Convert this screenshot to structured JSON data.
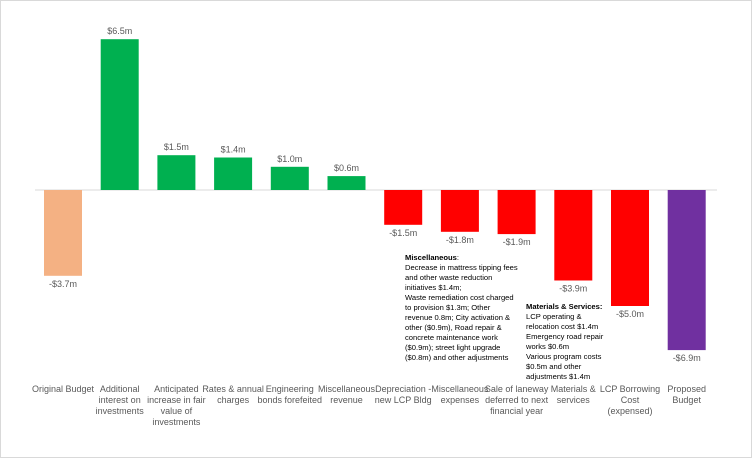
{
  "chart_data": {
    "type": "bar",
    "title": "",
    "xlabel": "",
    "ylabel": "",
    "ylim": [
      -7.5,
      7
    ],
    "grid": false,
    "legend": "none",
    "unit_prefix": "$",
    "unit_suffix": "m",
    "categories": [
      "Original Budget",
      "Additional interest on investments",
      "Anticipated increase in fair value of investments",
      "Rates & annual charges",
      "Engineering bonds forefeited",
      "Miscellaneous revenue",
      "Depreciation - new LCP Bldg",
      "Miscellaneous expenses",
      "Sale of laneway deferred to next financial year",
      "Materials & services",
      "LCP Borrowing Cost (expensed)",
      "Proposed Budget"
    ],
    "values": [
      -3.7,
      6.5,
      1.5,
      1.4,
      1.0,
      0.6,
      -1.5,
      -1.8,
      -1.9,
      -3.9,
      -5.0,
      -6.9
    ],
    "value_labels": [
      "-$3.7m",
      "$6.5m",
      "$1.5m",
      "$1.4m",
      "$1.0m",
      "$0.6m",
      "-$1.5m",
      "-$1.8m",
      "-$1.9m",
      "-$3.9m",
      "-$5.0m",
      "-$6.9m"
    ],
    "bar_colors": [
      "#F4B183",
      "#00B050",
      "#00B050",
      "#00B050",
      "#00B050",
      "#00B050",
      "#FF0000",
      "#FF0000",
      "#FF0000",
      "#FF0000",
      "#FF0000",
      "#7030A0"
    ],
    "annotations": [
      {
        "heading": "Miscellaneous",
        "text": ":\nDecrease in mattress tipping fees\nand other waste reduction\ninitiatives $1.4m;\nWaste remediation cost charged\nto provision $1.3m;  Other\nrevenue 0.8m; City activation &\nother ($0.9m), Road repair &\nconcrete maintenance work\n($0.9m); street light upgrade\n($0.8m) and other adjustments"
      },
      {
        "heading": "Materials & Services:",
        "text": "LCP operating &\nrelocation cost $1.4m\nEmergency road repair\nworks $0.6m\nVarious program costs\n$0.5m and other\nadjustments $1.4m"
      }
    ]
  },
  "colors": {
    "axis": "#d9d9d9",
    "label_text": "#595959"
  }
}
